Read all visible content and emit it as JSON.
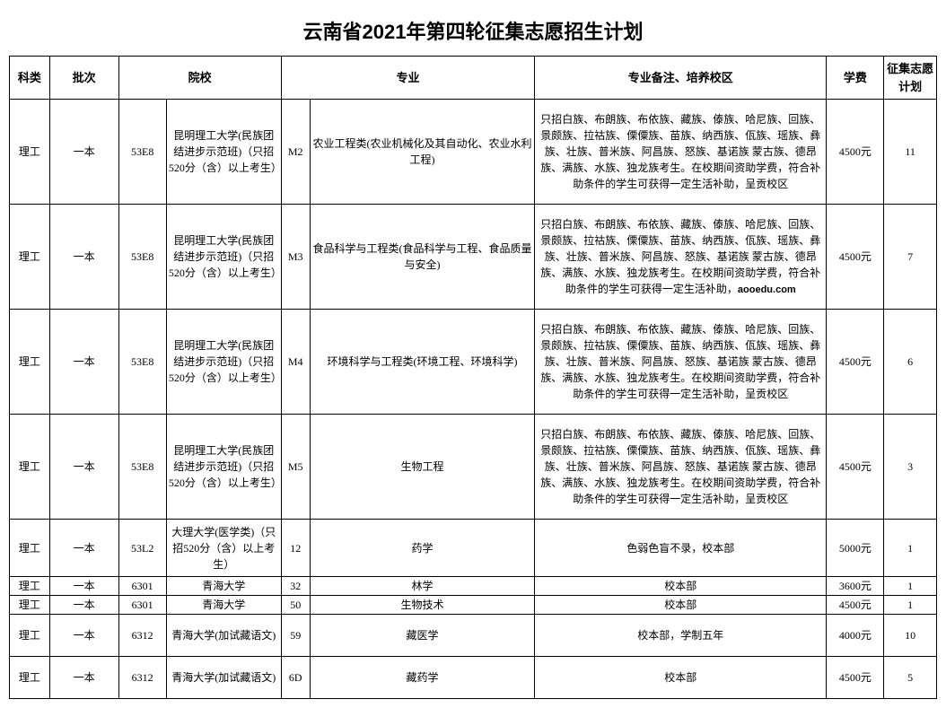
{
  "title": "云南省2021年第四轮征集志愿招生计划",
  "headers": {
    "category": "科类",
    "batch": "批次",
    "school": "院校",
    "major": "专业",
    "remark": "专业备注、培养校区",
    "fee": "学费",
    "plan": "征集志愿计划"
  },
  "common": {
    "ethnic_note_full": "只招白族、布朗族、布依族、藏族、傣族、哈尼族、回族、景颇族、拉祜族、傈僳族、苗族、纳西族、佤族、瑶族、彝族、壮族、普米族、阿昌族、怒族、基诺族 蒙古族、德昂族、满族、水族、独龙族考生。在校期间资助学费，符合补助条件的学生可获得一定生活补助，呈贡校区",
    "ethnic_note_trunc": "只招白族、布朗族、布依族、藏族、傣族、哈尼族、回族、景颇族、拉祜族、傈僳族、苗族、纳西族、佤族、瑶族、彝族、壮族、普米族、阿昌族、怒族、基诺族 蒙古族、德昂族、满族、水族、独龙族考生。在校期间资助学费，符合补助条件的学生可获得一定生活补助，",
    "watermark": "aooedu.com",
    "kmust": "昆明理工大学(民族团结进步示范班)（只招520分（含）以上考生）",
    "dali": "大理大学(医学类)（只招520分（含）以上考生）",
    "qhu": "青海大学",
    "qhu_tib": "青海大学(加试藏语文)"
  },
  "rows": [
    {
      "category": "理工",
      "batch": "一本",
      "code": "53E8",
      "school_key": "kmust",
      "mcode": "M2",
      "major": "农业工程类(农业机械化及其自动化、农业水利工程)",
      "remark_key": "ethnic_note_full",
      "fee": "4500元",
      "plan": "11",
      "cls": "tall"
    },
    {
      "category": "理工",
      "batch": "一本",
      "code": "53E8",
      "school_key": "kmust",
      "mcode": "M3",
      "major": "食品科学与工程类(食品科学与工程、食品质量与安全)",
      "remark_key": "ethnic_note_trunc",
      "watermark": true,
      "fee": "4500元",
      "plan": "7",
      "cls": "tall"
    },
    {
      "category": "理工",
      "batch": "一本",
      "code": "53E8",
      "school_key": "kmust",
      "mcode": "M4",
      "major": "环境科学与工程类(环境工程、环境科学)",
      "remark_key": "ethnic_note_full",
      "fee": "4500元",
      "plan": "6",
      "cls": "tall"
    },
    {
      "category": "理工",
      "batch": "一本",
      "code": "53E8",
      "school_key": "kmust",
      "mcode": "M5",
      "major": "生物工程",
      "remark_key": "ethnic_note_full",
      "fee": "4500元",
      "plan": "3",
      "cls": "tall"
    },
    {
      "category": "理工",
      "batch": "一本",
      "code": "53L2",
      "school_key": "dali",
      "mcode": "12",
      "major": "药学",
      "remark_text": "色弱色盲不录，校本部",
      "fee": "5000元",
      "plan": "1",
      "cls": "mid"
    },
    {
      "category": "理工",
      "batch": "一本",
      "code": "6301",
      "school_key": "qhu",
      "mcode": "32",
      "major": "林学",
      "remark_text": "校本部",
      "fee": "3600元",
      "plan": "1",
      "cls": "short"
    },
    {
      "category": "理工",
      "batch": "一本",
      "code": "6301",
      "school_key": "qhu",
      "mcode": "50",
      "major": "生物技术",
      "remark_text": "校本部",
      "fee": "4500元",
      "plan": "1",
      "cls": "short"
    },
    {
      "category": "理工",
      "batch": "一本",
      "code": "6312",
      "school_key": "qhu_tib",
      "mcode": "59",
      "major": "藏医学",
      "remark_text": "校本部，学制五年",
      "fee": "4000元",
      "plan": "10",
      "cls": "mid2"
    },
    {
      "category": "理工",
      "batch": "一本",
      "code": "6312",
      "school_key": "qhu_tib",
      "mcode": "6D",
      "major": "藏药学",
      "remark_text": "校本部",
      "fee": "4500元",
      "plan": "5",
      "cls": "mid2"
    }
  ]
}
